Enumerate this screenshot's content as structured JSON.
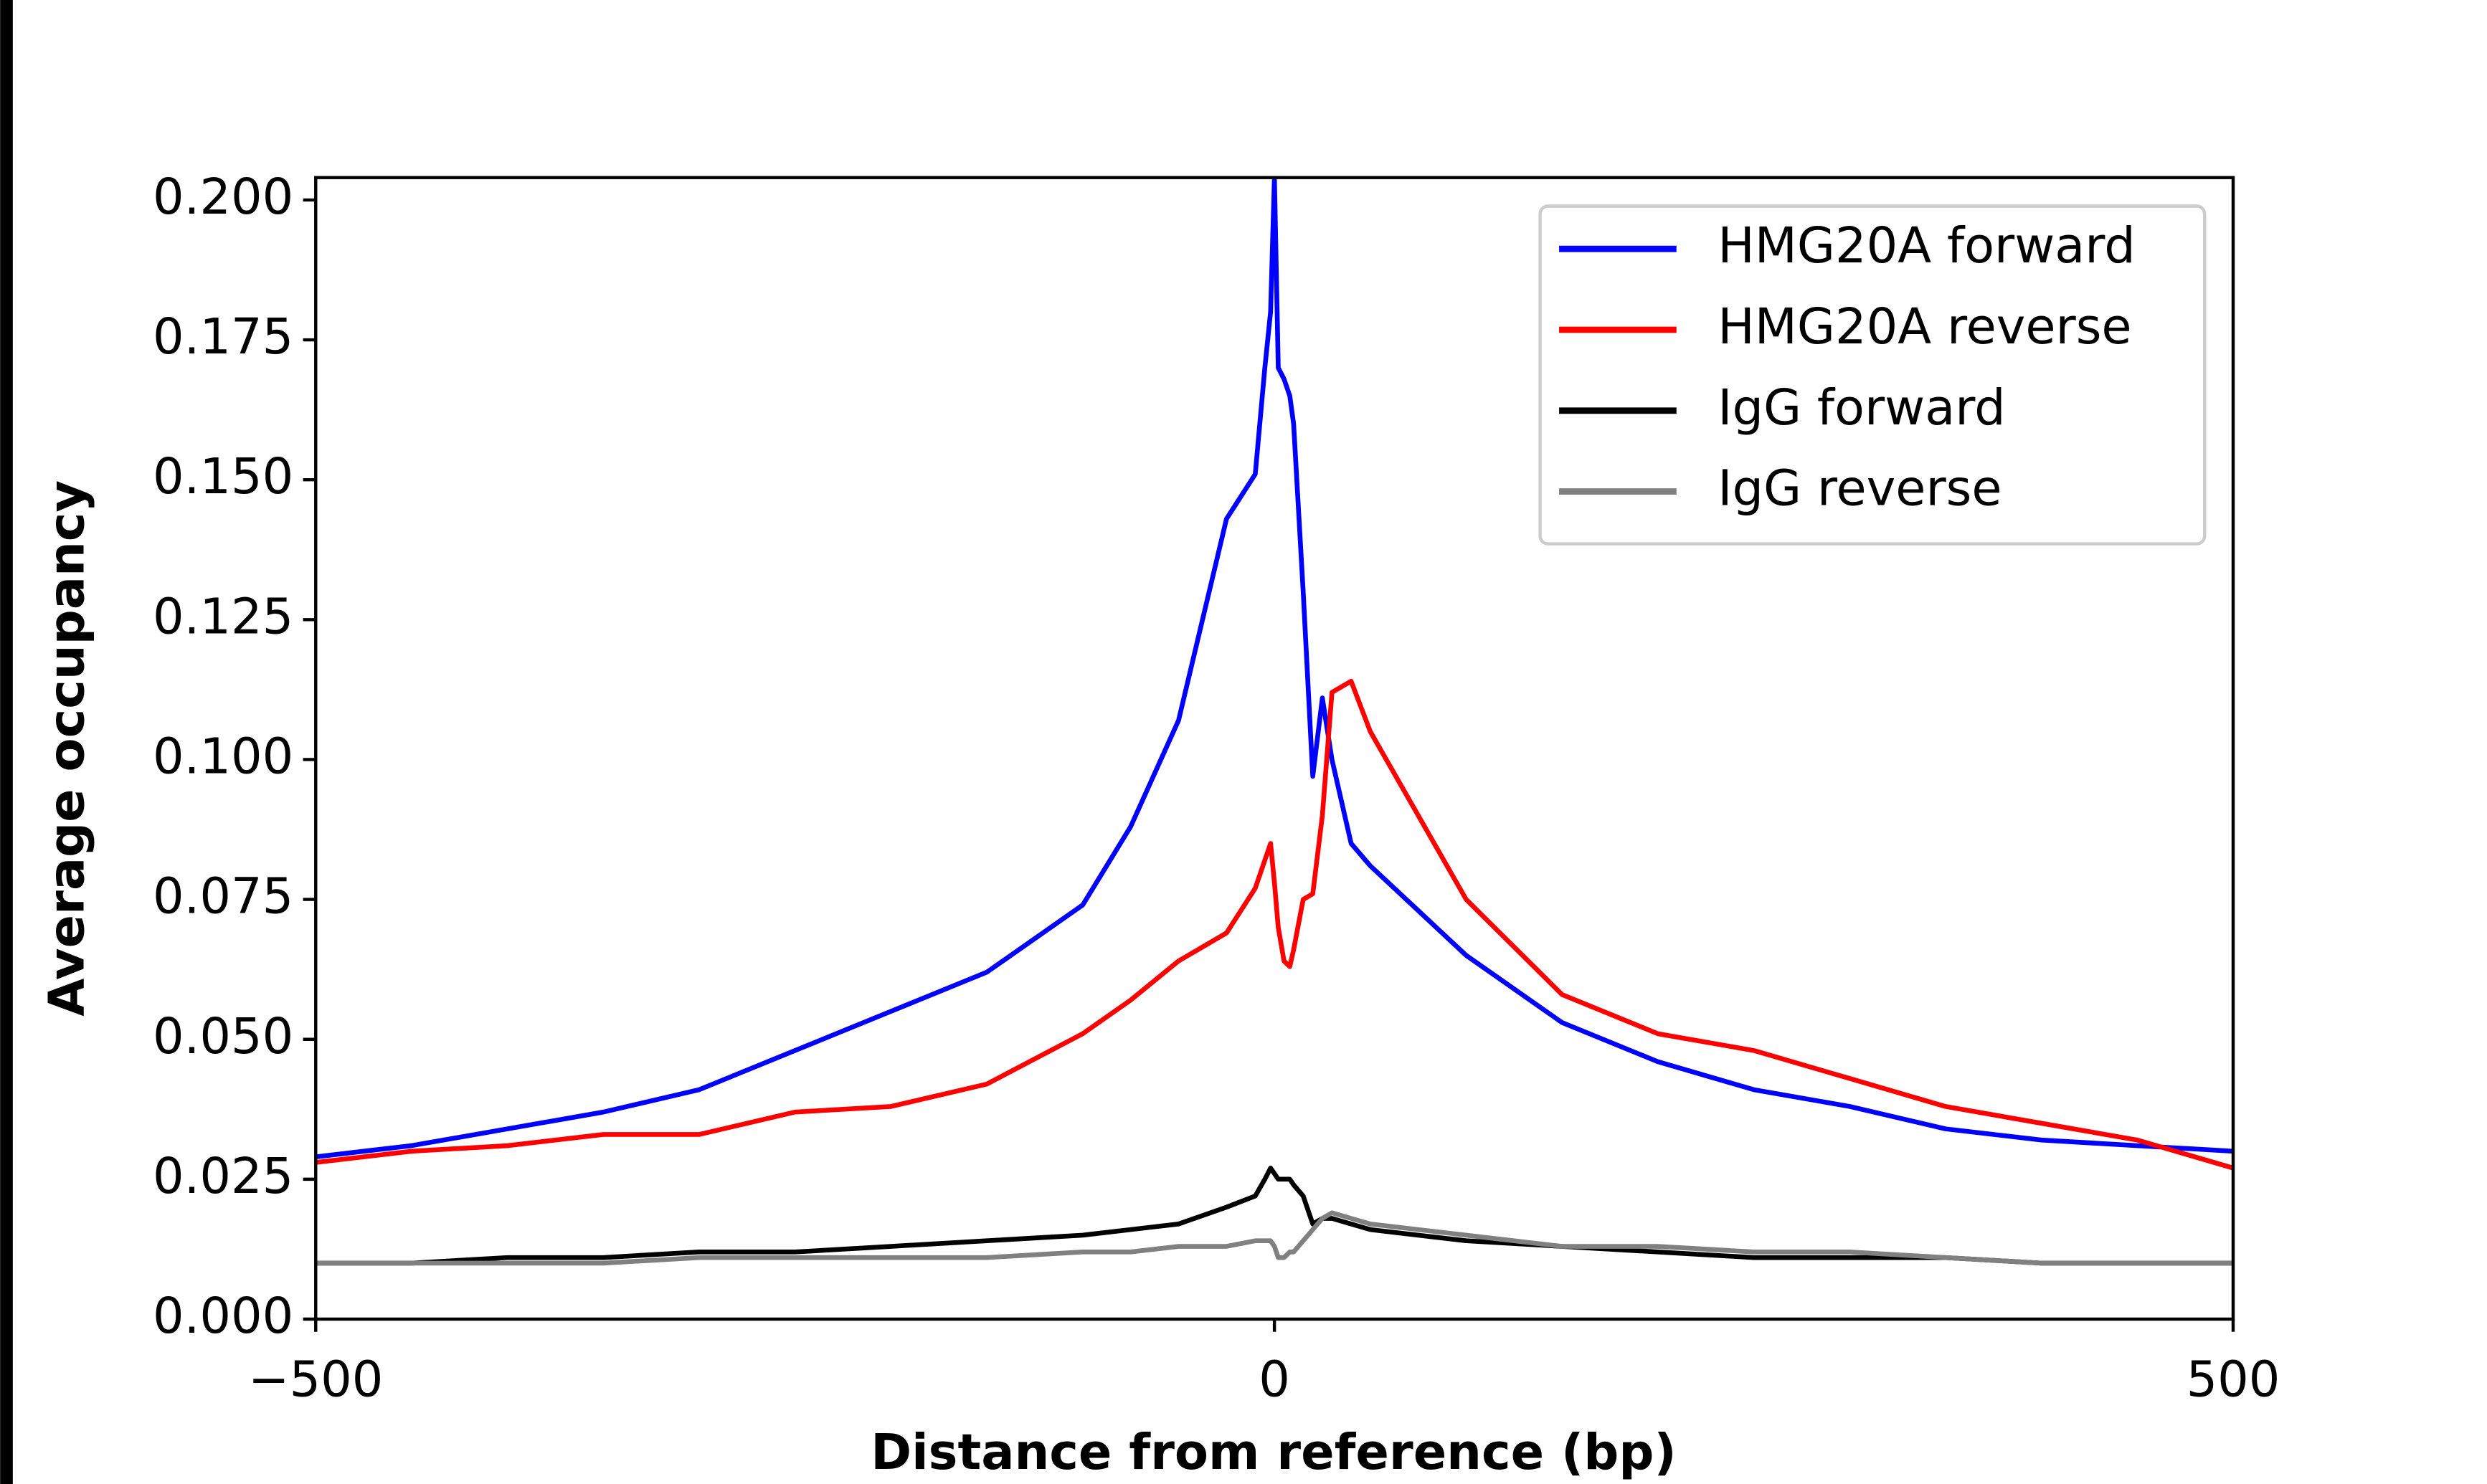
{
  "chart_data": {
    "type": "line",
    "xlabel": "Distance from reference (bp)",
    "ylabel": "Average occupancy",
    "x": [
      -500,
      -450,
      -400,
      -350,
      -300,
      -250,
      -200,
      -150,
      -100,
      -75,
      -50,
      -25,
      -10,
      -5,
      -2,
      0,
      2,
      5,
      8,
      10,
      15,
      20,
      25,
      30,
      40,
      50,
      75,
      100,
      150,
      200,
      250,
      300,
      350,
      400,
      450,
      500
    ],
    "series": [
      {
        "name": "HMG20A forward",
        "color": "#0000ff",
        "values": [
          0.029,
          0.031,
          0.034,
          0.037,
          0.041,
          0.048,
          0.055,
          0.062,
          0.074,
          0.088,
          0.107,
          0.143,
          0.151,
          0.17,
          0.18,
          0.204,
          0.17,
          0.168,
          0.165,
          0.16,
          0.13,
          0.097,
          0.111,
          0.1,
          0.085,
          0.081,
          0.073,
          0.065,
          0.053,
          0.046,
          0.041,
          0.038,
          0.034,
          0.032,
          0.031,
          0.03
        ]
      },
      {
        "name": "HMG20A reverse",
        "color": "#ff0000",
        "values": [
          0.028,
          0.03,
          0.031,
          0.033,
          0.033,
          0.037,
          0.038,
          0.042,
          0.051,
          0.057,
          0.064,
          0.069,
          0.077,
          0.082,
          0.085,
          0.078,
          0.07,
          0.064,
          0.063,
          0.066,
          0.075,
          0.076,
          0.09,
          0.112,
          0.114,
          0.105,
          0.09,
          0.075,
          0.058,
          0.051,
          0.048,
          0.043,
          0.038,
          0.035,
          0.032,
          0.027
        ]
      },
      {
        "name": "IgG forward",
        "color": "#000000",
        "values": [
          0.01,
          0.01,
          0.011,
          0.011,
          0.012,
          0.012,
          0.013,
          0.014,
          0.015,
          0.016,
          0.017,
          0.02,
          0.022,
          0.025,
          0.027,
          0.026,
          0.025,
          0.025,
          0.025,
          0.024,
          0.022,
          0.017,
          0.018,
          0.018,
          0.017,
          0.016,
          0.015,
          0.014,
          0.013,
          0.012,
          0.011,
          0.011,
          0.011,
          0.01,
          0.01,
          0.01
        ]
      },
      {
        "name": "IgG reverse",
        "color": "#808080",
        "values": [
          0.01,
          0.01,
          0.01,
          0.01,
          0.011,
          0.011,
          0.011,
          0.011,
          0.012,
          0.012,
          0.013,
          0.013,
          0.014,
          0.014,
          0.014,
          0.013,
          0.011,
          0.011,
          0.012,
          0.012,
          0.014,
          0.016,
          0.018,
          0.019,
          0.018,
          0.017,
          0.016,
          0.015,
          0.013,
          0.013,
          0.012,
          0.012,
          0.011,
          0.01,
          0.01,
          0.01
        ]
      }
    ],
    "xlim": [
      -500,
      500
    ],
    "ylim": [
      0,
      0.204
    ],
    "xticks": [
      {
        "value": -500,
        "label": "−500"
      },
      0,
      500
    ],
    "yticks": [
      {
        "value": 0,
        "label": "0.000"
      },
      {
        "value": 0.025,
        "label": "0.025"
      },
      {
        "value": 0.05,
        "label": "0.050"
      },
      {
        "value": 0.075,
        "label": "0.075"
      },
      {
        "value": 0.1,
        "label": "0.100"
      },
      {
        "value": 0.125,
        "label": "0.125"
      },
      {
        "value": 0.15,
        "label": "0.150"
      },
      {
        "value": 0.175,
        "label": "0.175"
      },
      {
        "value": 0.2,
        "label": "0.200"
      }
    ],
    "legend": "upper right"
  }
}
